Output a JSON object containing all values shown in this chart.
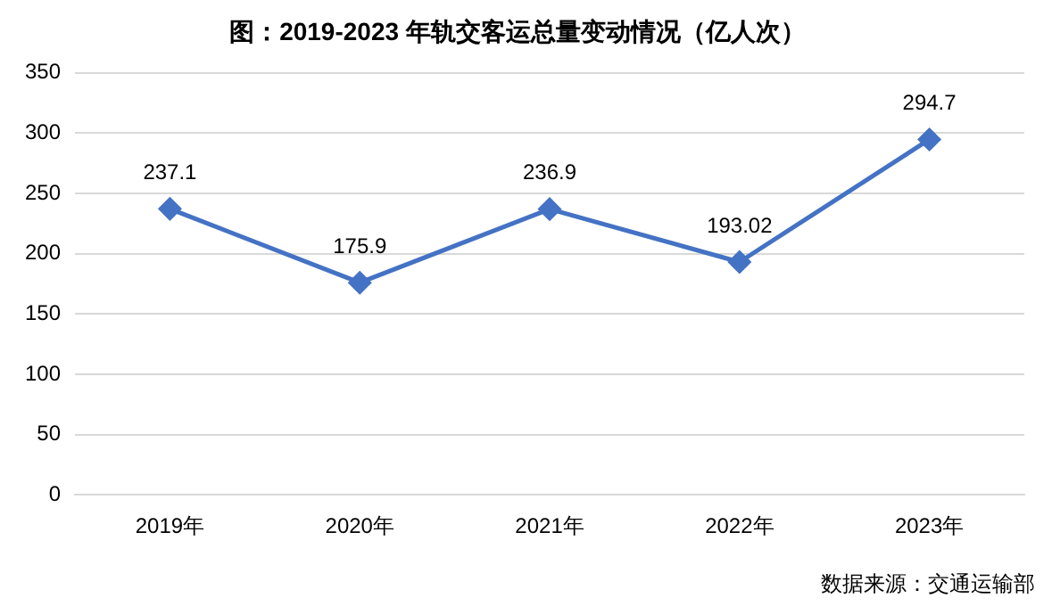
{
  "chart_data": {
    "type": "line",
    "title": "图：2019-2023 年轨交客运总量变动情况（亿人次）",
    "categories": [
      "2019年",
      "2020年",
      "2021年",
      "2022年",
      "2023年"
    ],
    "series": [
      {
        "color": "#4472c4",
        "values": [
          237.1,
          175.9,
          236.9,
          193.02,
          294.7
        ]
      }
    ],
    "ylim": [
      0,
      350
    ],
    "yticks": [
      0,
      50,
      100,
      150,
      200,
      250,
      300,
      350
    ],
    "grid": "y",
    "marker": "diamond",
    "line_style": "solid",
    "data_labels": true,
    "legend": false,
    "annotations": [
      "数据来源：交通运输部"
    ]
  }
}
